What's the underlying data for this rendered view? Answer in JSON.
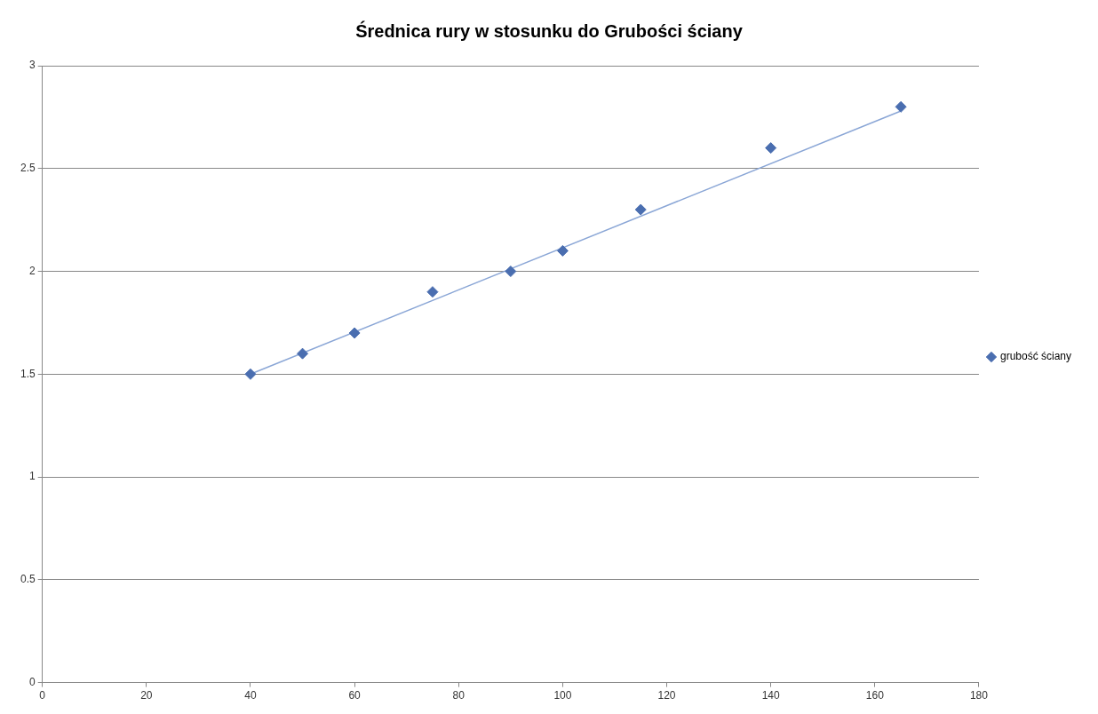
{
  "chart_data": {
    "type": "scatter",
    "title": "Średnica rury w stosunku do Grubości ściany",
    "x": [
      40,
      50,
      60,
      75,
      90,
      100,
      115,
      140,
      165
    ],
    "series": [
      {
        "name": "grubość ściany",
        "color": "#4a6eb0",
        "marker": "diamond",
        "values": [
          1.5,
          1.6,
          1.7,
          1.9,
          2.0,
          2.1,
          2.3,
          2.6,
          2.8
        ]
      },
      {
        "type": "line",
        "color": "#8aa6d6",
        "marker": "none",
        "x": [
          40,
          165
        ],
        "values": [
          1.5,
          2.78
        ]
      }
    ],
    "xlim": [
      0,
      180
    ],
    "xticks": [
      0,
      20,
      40,
      60,
      80,
      100,
      120,
      140,
      160,
      180
    ],
    "ylim": [
      0,
      3
    ],
    "yticks": [
      0,
      0.5,
      1,
      1.5,
      2,
      2.5,
      3
    ],
    "grid": "y",
    "legend": "right"
  }
}
